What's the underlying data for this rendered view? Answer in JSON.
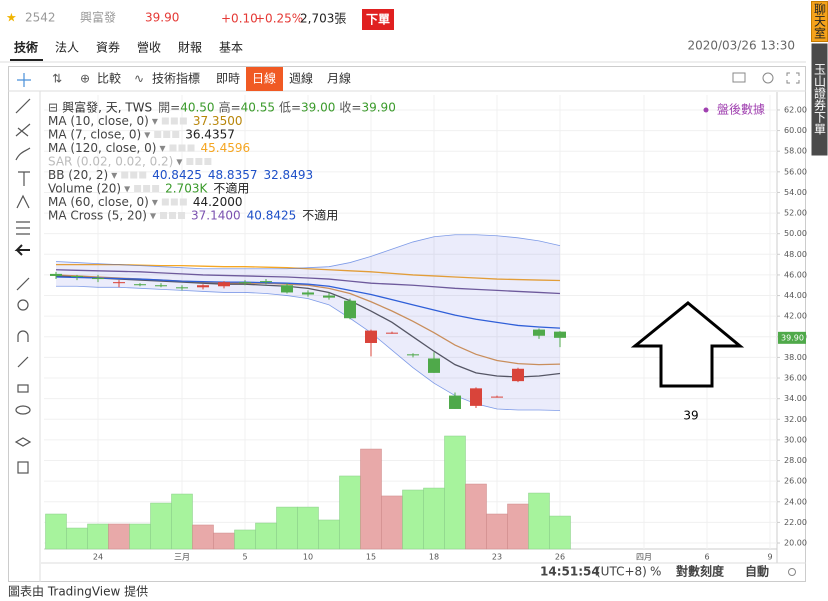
{
  "header": {
    "code": "2542",
    "name": "興富發",
    "price": "39.90",
    "change": "+0.10",
    "change_pct": "+0.25%",
    "volume": "2,703張",
    "order_button": "下單"
  },
  "tabs": [
    "技術",
    "法人",
    "資券",
    "營收",
    "財報",
    "基本"
  ],
  "datetime": "2020/03/26 13:30",
  "toolbar": [
    "比較",
    "技術指標",
    "即時",
    "日線",
    "週線",
    "月線"
  ],
  "side": [
    "聊天室",
    "玉山證券下單"
  ],
  "footer": {
    "time": "14:51:54",
    "tz": "(UTC+8)",
    "pct": "%",
    "log": "對數刻度",
    "auto": "自動"
  },
  "credit": "圖表由 TradingView 提供",
  "chart_data": {
    "type": "candlestick",
    "symbol": "興富發, 天, TWS",
    "ohlc_readout": [
      {
        "label": "開=",
        "value": "40.50"
      },
      {
        "label": "高=",
        "value": "40.55"
      },
      {
        "label": "低=",
        "value": "39.00"
      },
      {
        "label": "收=",
        "value": "39.90"
      }
    ],
    "annotation": "盤後數據",
    "note": "39",
    "categories": [
      null,
      null,
      "24",
      null,
      null,
      null,
      "三月",
      null,
      null,
      "5",
      null,
      null,
      "10",
      null,
      null,
      "15",
      null,
      null,
      "18",
      null,
      null,
      "23",
      null,
      null,
      "26",
      null,
      null,
      null,
      "四月",
      null,
      null,
      "6",
      null,
      null,
      "9"
    ],
    "open": [
      46.1,
      45.9,
      45.7,
      45.2,
      45.1,
      45.0,
      44.8,
      44.8,
      44.9,
      45.3,
      45.4,
      45.0,
      44.3,
      44.0,
      43.5,
      39.4,
      40.4,
      38.3,
      37.9,
      34.3,
      33.3,
      34.2,
      35.7,
      40.7,
      40.5,
      null,
      null,
      null,
      null,
      null,
      null,
      null,
      null,
      null,
      null
    ],
    "high": [
      46.3,
      46.0,
      46.0,
      45.5,
      45.2,
      45.2,
      45.0,
      45.1,
      45.4,
      45.5,
      45.6,
      45.2,
      44.5,
      44.3,
      43.7,
      40.7,
      40.5,
      38.4,
      38.5,
      34.6,
      35.1,
      34.3,
      37.0,
      40.8,
      40.55,
      null,
      null,
      null,
      null,
      null,
      null,
      null,
      null,
      null,
      null
    ],
    "low": [
      45.6,
      45.5,
      45.3,
      44.8,
      44.9,
      44.8,
      44.5,
      44.6,
      44.7,
      45.0,
      45.1,
      44.2,
      43.9,
      43.6,
      41.7,
      38.1,
      40.3,
      38.0,
      36.5,
      33.0,
      33.1,
      34.1,
      35.6,
      39.8,
      39.0,
      null,
      null,
      null,
      null,
      null,
      null,
      null,
      null,
      null,
      null
    ],
    "close": [
      45.9,
      45.8,
      45.6,
      45.3,
      45.0,
      44.9,
      44.7,
      45.0,
      45.3,
      45.2,
      45.3,
      44.3,
      44.1,
      43.8,
      41.8,
      40.6,
      40.4,
      38.2,
      36.5,
      33.0,
      35.0,
      34.2,
      36.9,
      40.1,
      39.9,
      null,
      null,
      null,
      null,
      null,
      null,
      null,
      null,
      null,
      null
    ],
    "up_color": "#d9443a",
    "down_color": "#4fa94a",
    "indicators": [
      {
        "name": "MA (10, close, 0)",
        "readout": [
          "37.3500"
        ],
        "readout_colors": [
          "#b8860b"
        ],
        "color": "#d9954a",
        "values": [
          46.0,
          45.9,
          45.8,
          45.7,
          45.6,
          45.5,
          45.4,
          45.3,
          45.2,
          45.2,
          45.2,
          45.1,
          45.0,
          44.7,
          44.2,
          43.4,
          42.5,
          41.5,
          40.4,
          39.2,
          38.3,
          37.7,
          37.4,
          37.3,
          37.35,
          null,
          null,
          null,
          null,
          null,
          null,
          null,
          null,
          null,
          null
        ]
      },
      {
        "name": "MA (7, close, 0)",
        "readout": [
          "36.4357"
        ],
        "readout_colors": [
          "#222222"
        ],
        "color": "#555555",
        "values": [
          45.9,
          45.8,
          45.7,
          45.6,
          45.5,
          45.4,
          45.3,
          45.2,
          45.1,
          45.1,
          45.0,
          44.9,
          44.7,
          44.3,
          43.5,
          42.5,
          41.4,
          40.0,
          38.6,
          37.3,
          36.5,
          36.2,
          36.1,
          36.2,
          36.44,
          null,
          null,
          null,
          null,
          null,
          null,
          null,
          null,
          null,
          null
        ]
      },
      {
        "name": "MA (120, close, 0)",
        "readout": [
          "45.4596"
        ],
        "readout_colors": [
          "#f5a623"
        ],
        "color": "#f5a623",
        "values": [
          47.0,
          47.0,
          47.0,
          47.0,
          46.95,
          46.9,
          46.9,
          46.85,
          46.8,
          46.8,
          46.75,
          46.7,
          46.6,
          46.5,
          46.4,
          46.3,
          46.15,
          46.0,
          45.9,
          45.8,
          45.7,
          45.6,
          45.55,
          45.5,
          45.46,
          null,
          null,
          null,
          null,
          null,
          null,
          null,
          null,
          null,
          null
        ]
      },
      {
        "name": "SAR (0.02, 0.02, 0.2)",
        "readout": [],
        "readout_colors": [],
        "color": "#bbbbbb",
        "hidden": true
      },
      {
        "name": "BB (20, 2)",
        "readout": [
          "40.8425",
          "48.8357",
          "32.8493"
        ],
        "readout_colors": [
          "#1e50c8",
          "#1e50c8",
          "#1e50c8"
        ],
        "color": "#2f5fd8",
        "values": [
          45.8,
          45.75,
          45.7,
          45.65,
          45.6,
          45.5,
          45.4,
          45.35,
          45.3,
          45.3,
          45.25,
          45.2,
          45.1,
          44.9,
          44.5,
          44.1,
          43.6,
          43.1,
          42.6,
          42.1,
          41.7,
          41.4,
          41.1,
          40.95,
          40.84,
          null,
          null,
          null,
          null,
          null,
          null,
          null,
          null,
          null,
          null
        ],
        "upper": [
          47.3,
          47.2,
          47.1,
          47.0,
          46.9,
          46.8,
          46.7,
          46.6,
          46.6,
          46.6,
          46.6,
          46.6,
          46.7,
          46.8,
          47.2,
          47.8,
          48.5,
          49.2,
          49.7,
          49.9,
          49.9,
          49.8,
          49.6,
          49.3,
          48.84,
          null,
          null,
          null,
          null,
          null,
          null,
          null,
          null,
          null,
          null
        ],
        "lower": [
          44.9,
          44.9,
          44.8,
          44.8,
          44.7,
          44.6,
          44.5,
          44.4,
          44.3,
          44.3,
          44.2,
          44.0,
          43.7,
          43.1,
          41.8,
          40.4,
          38.7,
          37.0,
          35.5,
          34.3,
          33.5,
          33.0,
          32.9,
          32.9,
          32.85,
          null,
          null,
          null,
          null,
          null,
          null,
          null,
          null,
          null,
          null
        ]
      },
      {
        "name": "Volume (20)",
        "readout": [
          "2.703K",
          "不適用"
        ],
        "readout_colors": [
          "#3a9a2a",
          "#222222"
        ],
        "volume": [
          2870,
          1720,
          2050,
          2050,
          2050,
          3770,
          4510,
          1970,
          1310,
          1560,
          2130,
          3440,
          3440,
          2380,
          5990,
          8200,
          4350,
          4840,
          5000,
          9270,
          5330,
          2870,
          3690,
          4590,
          2703,
          null,
          null,
          null,
          null,
          null,
          null,
          null,
          null,
          null,
          null
        ]
      },
      {
        "name": "MA (60, close, 0)",
        "readout": [
          "44.2000"
        ],
        "readout_colors": [
          "#222222"
        ],
        "color": "#6e5a9c",
        "values": [
          46.5,
          46.45,
          46.4,
          46.35,
          46.3,
          46.2,
          46.1,
          46.0,
          45.95,
          45.9,
          45.85,
          45.8,
          45.7,
          45.6,
          45.4,
          45.2,
          45.1,
          45.0,
          44.85,
          44.7,
          44.6,
          44.5,
          44.4,
          44.3,
          44.2,
          null,
          null,
          null,
          null,
          null,
          null,
          null,
          null,
          null,
          null
        ]
      },
      {
        "name": "MA Cross (5, 20)",
        "readout": [
          "37.1400",
          "40.8425",
          "不適用"
        ],
        "readout_colors": [
          "#7b52b0",
          "#1e50c8",
          "#222222"
        ]
      }
    ],
    "ylim": [
      19.42,
      63.45
    ],
    "yticks": [
      {
        "value": 20,
        "label": "20.00"
      },
      {
        "value": 22,
        "label": "22.00"
      },
      {
        "value": 24,
        "label": "24.00"
      },
      {
        "value": 26,
        "label": "26.00"
      },
      {
        "value": 28,
        "label": "28.00"
      },
      {
        "value": 30,
        "label": "30.00"
      },
      {
        "value": 32,
        "label": "32.00"
      },
      {
        "value": 34,
        "label": "34.00"
      },
      {
        "value": 36,
        "label": "36.00"
      },
      {
        "value": 38,
        "label": "38.00"
      },
      {
        "value": 40,
        "label": "40.00"
      },
      {
        "value": 42,
        "label": "42.00"
      },
      {
        "value": 44,
        "label": "44.00"
      },
      {
        "value": 46,
        "label": "46.00"
      },
      {
        "value": 48,
        "label": "48.00"
      },
      {
        "value": 50,
        "label": "50.00"
      },
      {
        "value": 52,
        "label": "52.00"
      },
      {
        "value": 54,
        "label": "54.00"
      },
      {
        "value": 56,
        "label": "56.00"
      },
      {
        "value": 58,
        "label": "58.00"
      },
      {
        "value": 60,
        "label": "60.00"
      },
      {
        "value": 62,
        "label": "62.00"
      }
    ],
    "last_price": 39.9,
    "grid": true
  }
}
